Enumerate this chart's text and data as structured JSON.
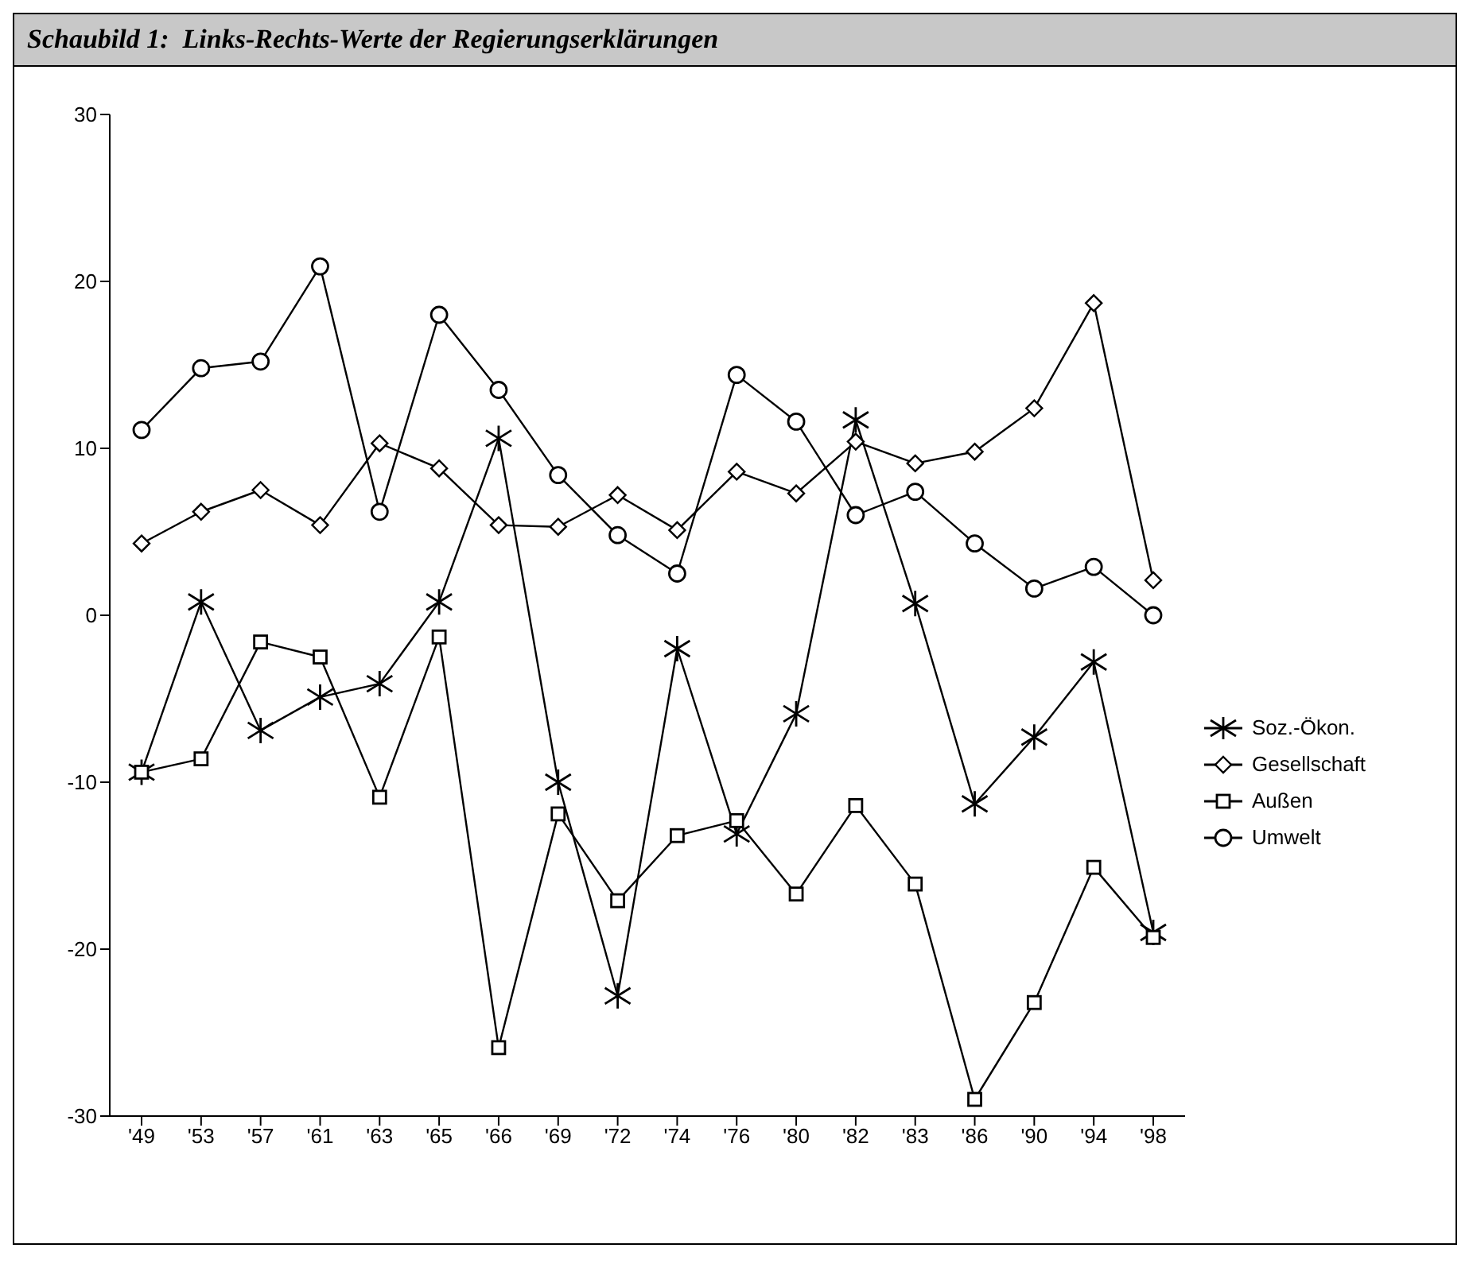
{
  "chart_data": {
    "type": "line",
    "title": "Schaubild 1:  Links-Rechts-Werte der Regierungserklärungen",
    "categories": [
      "'49",
      "'53",
      "'57",
      "'61",
      "'63",
      "'65",
      "'66",
      "'69",
      "'72",
      "'74",
      "'76",
      "'80",
      "'82",
      "'83",
      "'86",
      "'90",
      "'94",
      "'98"
    ],
    "series": [
      {
        "name": "Soz.-Ökon.",
        "color": "#000000",
        "marker": "cross",
        "values": [
          -9.4,
          0.8,
          -6.9,
          -4.9,
          -4.1,
          0.8,
          10.6,
          -10.0,
          -22.8,
          -2.0,
          -13.1,
          -5.9,
          11.7,
          0.7,
          -11.3,
          -7.3,
          -2.8,
          -19.0
        ]
      },
      {
        "name": "Gesellschaft",
        "color": "#000000",
        "marker": "diamond",
        "values": [
          4.3,
          6.2,
          7.5,
          5.4,
          10.3,
          8.8,
          5.4,
          5.3,
          7.2,
          5.1,
          8.6,
          7.3,
          10.4,
          9.1,
          9.8,
          12.4,
          18.7,
          2.1
        ]
      },
      {
        "name": "Außen",
        "color": "#000000",
        "marker": "square",
        "values": [
          -9.4,
          -8.6,
          -1.6,
          -2.5,
          -10.9,
          -1.3,
          -25.9,
          -11.9,
          -17.1,
          -13.2,
          -12.3,
          -16.7,
          -11.4,
          -16.1,
          -29.0,
          -23.2,
          -15.1,
          -19.3
        ]
      },
      {
        "name": "Umwelt",
        "color": "#000000",
        "marker": "circle",
        "values": [
          11.1,
          14.8,
          15.2,
          20.9,
          6.2,
          18.0,
          13.5,
          8.4,
          4.8,
          2.5,
          14.4,
          11.6,
          6.0,
          7.4,
          4.3,
          1.6,
          2.9,
          0.0
        ]
      }
    ],
    "ylim": [
      -30,
      30
    ],
    "yticks": [
      -30,
      -20,
      -10,
      0,
      10,
      20,
      30
    ],
    "grid": false,
    "legend": "right",
    "line_style": "solid"
  }
}
